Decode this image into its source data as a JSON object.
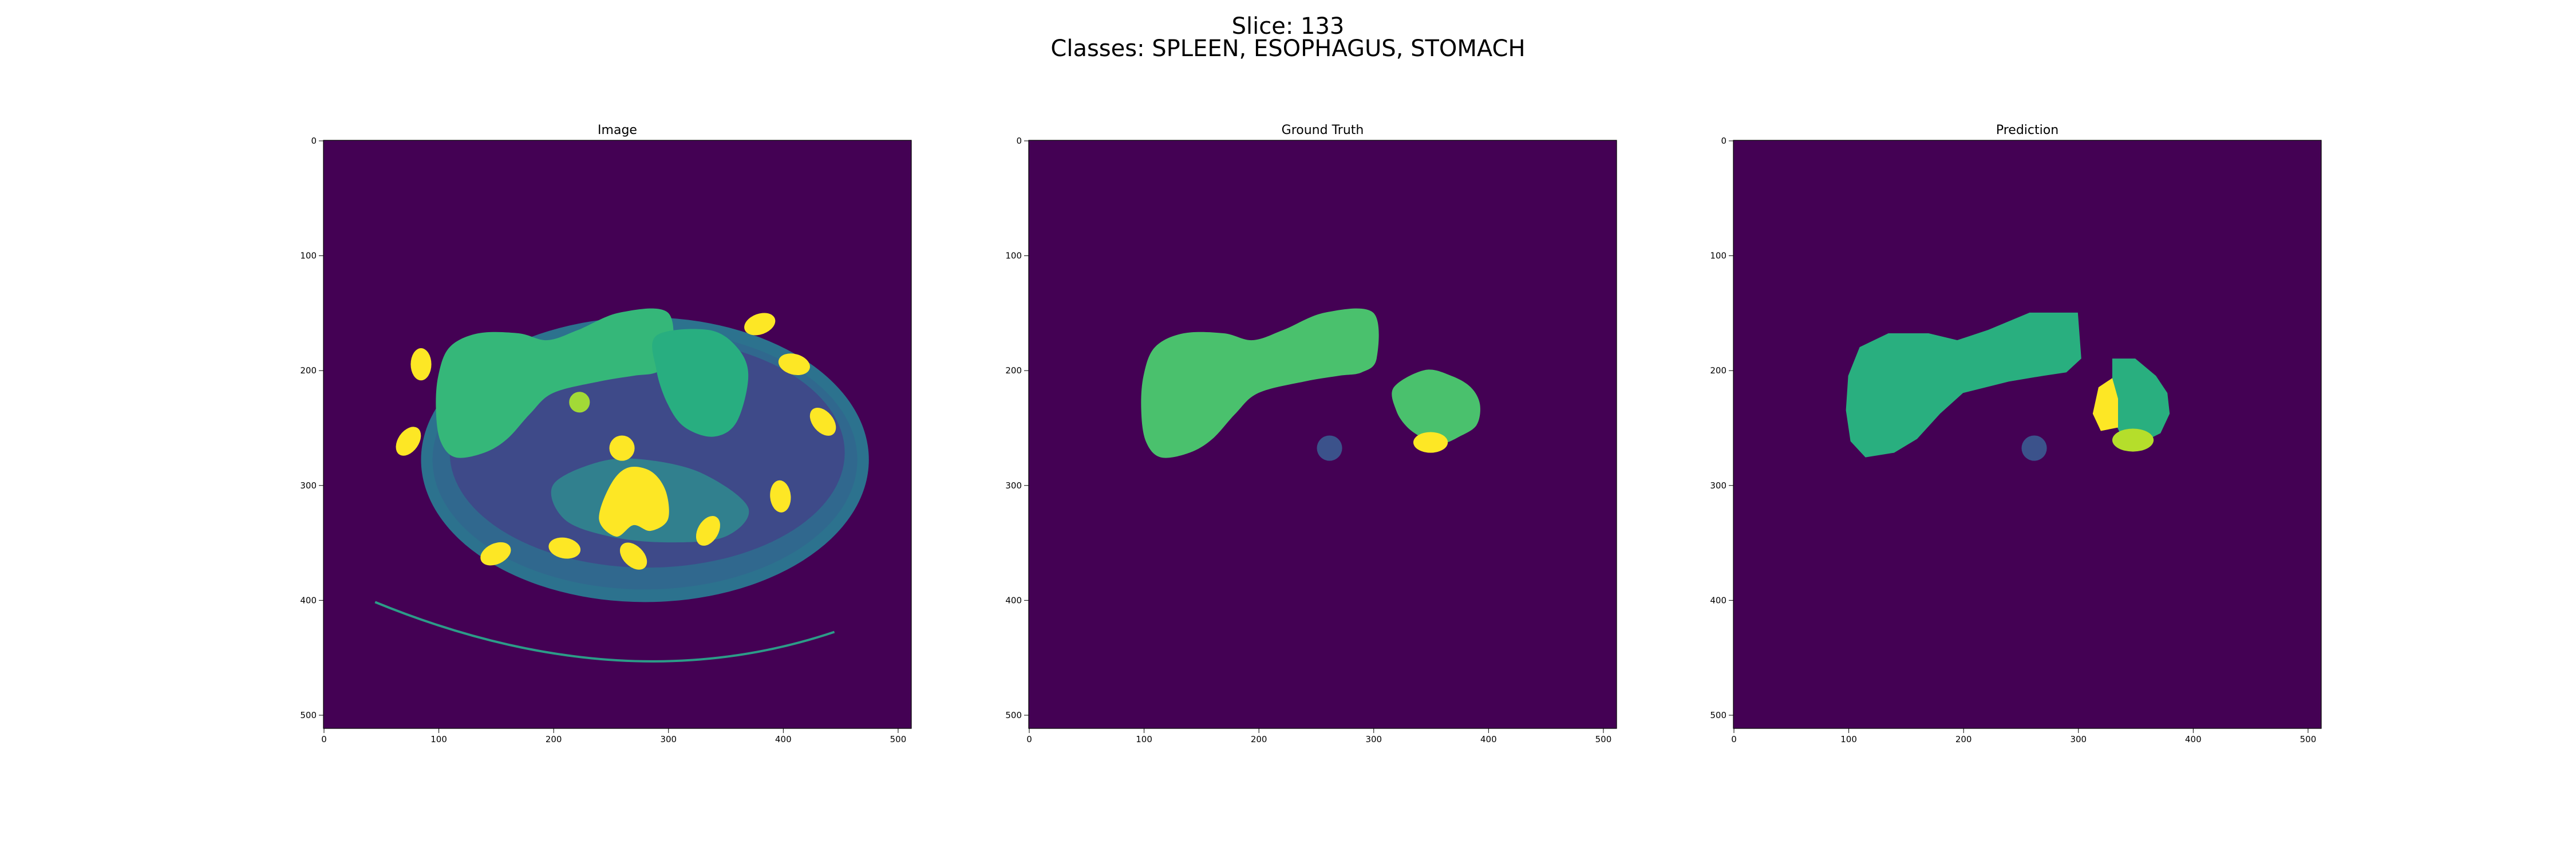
{
  "header": {
    "slice": "Slice: 133",
    "classes": "Classes: SPLEEN, ESOPHAGUS, STOMACH"
  },
  "panels": [
    {
      "title": "Image",
      "kind": "ct-image"
    },
    {
      "title": "Ground Truth",
      "kind": "mask"
    },
    {
      "title": "Prediction",
      "kind": "mask"
    }
  ],
  "axis": {
    "x_ticks": [
      "0",
      "100",
      "200",
      "300",
      "400",
      "500"
    ],
    "y_ticks": [
      "0",
      "100",
      "200",
      "300",
      "400",
      "500"
    ]
  },
  "colors": {
    "background": "#440154",
    "mask_liver": "#4ac16d",
    "mask_spleen_ring": "#3b528b",
    "mask_yellow": "#fde725",
    "pred_liver": "#29af7f",
    "pred_lime": "#b5de2b",
    "ct_soft": "#35b779",
    "ct_dark": "#2c728e",
    "ct_bone": "#fde725"
  }
}
